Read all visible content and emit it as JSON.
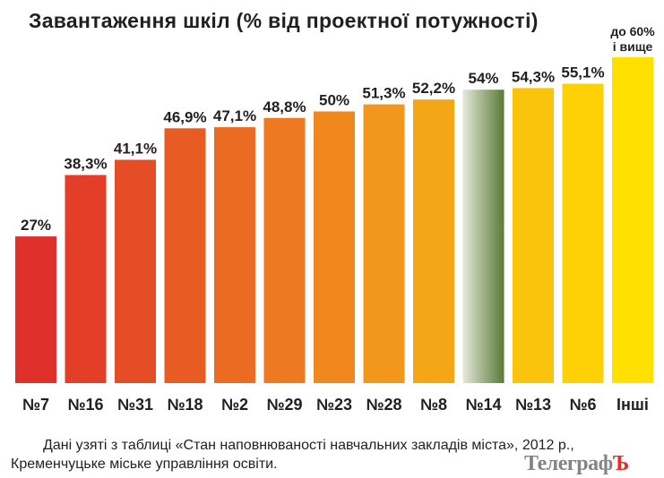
{
  "chart_data": {
    "type": "bar",
    "title": "Завантаження шкіл (% від проектної потужності)",
    "categories": [
      "№7",
      "№16",
      "№31",
      "№18",
      "№2",
      "№29",
      "№23",
      "№28",
      "№8",
      "№14",
      "№13",
      "№6",
      "Інші"
    ],
    "values": [
      27,
      38.3,
      41.1,
      46.9,
      47.1,
      48.8,
      50,
      51.3,
      52.2,
      54,
      54.3,
      55.1,
      60
    ],
    "data_labels": [
      "27%",
      "38,3%",
      "41,1%",
      "46,9%",
      "47,1%",
      "48,8%",
      "50%",
      "51,3%",
      "52,2%",
      "54%",
      "54,3%",
      "55,1%",
      "до 60%|і вище"
    ],
    "highlight_category": "№14",
    "ylim": [
      0,
      60
    ],
    "grid": false,
    "colors": {
      "start": "#e0302a",
      "mid": "#f39a1c",
      "end": "#ffe000",
      "highlight_dark": "#5a7a38",
      "highlight_light": "#e6e9da",
      "highlight_label": "#5a7a38"
    }
  },
  "note": "Дані узяті з таблиці «Стан наповнюваності навчальних закладів міста», 2012 р., Кременчуцьке міське управління освіти.",
  "watermark": {
    "main": "Телеграф",
    "accent": "Ъ"
  }
}
